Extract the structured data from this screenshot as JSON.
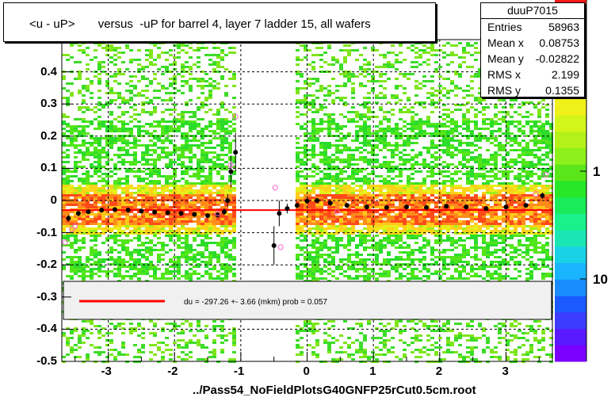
{
  "title": "<u - uP>       versus  -uP for barrel 4, layer 7 ladder 15, all wafers",
  "stats": {
    "name": "duuP7015",
    "rows": [
      {
        "label": "Entries",
        "value": "58963"
      },
      {
        "label": "Mean x",
        "value": "0.08753"
      },
      {
        "label": "Mean y",
        "value": "-0.02822"
      },
      {
        "label": "RMS x",
        "value": "2.199"
      },
      {
        "label": "RMS y",
        "value": "0.1355"
      }
    ]
  },
  "footer": "../Pass54_NoFieldPlotsG40GNFP25rCut0.5cm.root",
  "fit_legend": "du = -297.26 +-  3.66 (mkm) prob = 0.057",
  "colors": {
    "fit_line": "#ff0000",
    "profile_points": "#000000",
    "open_points": "#ff66cc",
    "legend_fill": "#f0f0f0"
  },
  "chart_data": {
    "type": "heatmap",
    "xlim": [
      -3.7,
      3.7
    ],
    "ylim": [
      -0.5,
      0.5
    ],
    "x_ticks": [
      -3,
      -2,
      -1,
      0,
      1,
      2,
      3
    ],
    "y_ticks": [
      -0.5,
      -0.4,
      -0.3,
      -0.2,
      -0.1,
      0,
      0.1,
      0.2,
      0.3,
      0.4
    ],
    "y_tick_labels": [
      "-0.5",
      "-0.4",
      "-0.3",
      "-0.2",
      "-0.1",
      "0",
      "0.1",
      "0.2",
      "0.3",
      "0.4"
    ],
    "x_tick_labels": [
      "-3",
      "-2",
      "-1",
      "0",
      "1",
      "2",
      "3"
    ],
    "z_scale": "log",
    "z_tick_labels": [
      "1",
      "10"
    ],
    "grid": true,
    "empty_x_band": [
      -1.05,
      -0.15
    ],
    "profile": [
      {
        "x": -3.6,
        "y": -0.055,
        "err": 0.01
      },
      {
        "x": -3.45,
        "y": -0.04,
        "err": 0.008
      },
      {
        "x": -3.3,
        "y": -0.035,
        "err": 0.006
      },
      {
        "x": -3.1,
        "y": -0.03,
        "err": 0.005
      },
      {
        "x": -2.9,
        "y": -0.028,
        "err": 0.005
      },
      {
        "x": -2.7,
        "y": -0.03,
        "err": 0.005
      },
      {
        "x": -2.5,
        "y": -0.033,
        "err": 0.005
      },
      {
        "x": -2.3,
        "y": -0.036,
        "err": 0.005
      },
      {
        "x": -2.1,
        "y": -0.038,
        "err": 0.005
      },
      {
        "x": -1.9,
        "y": -0.04,
        "err": 0.005
      },
      {
        "x": -1.7,
        "y": -0.043,
        "err": 0.006
      },
      {
        "x": -1.5,
        "y": -0.047,
        "err": 0.007
      },
      {
        "x": -1.35,
        "y": -0.045,
        "err": 0.008
      },
      {
        "x": -1.25,
        "y": -0.035,
        "err": 0.01
      },
      {
        "x": -1.2,
        "y": 0.0,
        "err": 0.02
      },
      {
        "x": -1.15,
        "y": 0.09,
        "err": 0.05
      },
      {
        "x": -1.08,
        "y": 0.15,
        "err": 0.06
      },
      {
        "x": -0.5,
        "y": -0.14,
        "err": 0.06
      },
      {
        "x": -0.42,
        "y": -0.04,
        "err": 0.04
      },
      {
        "x": -0.3,
        "y": -0.025,
        "err": 0.015
      },
      {
        "x": -0.15,
        "y": -0.015,
        "err": 0.008
      },
      {
        "x": 0.0,
        "y": -0.002,
        "err": 0.006
      },
      {
        "x": 0.15,
        "y": 0.0,
        "err": 0.005
      },
      {
        "x": 0.35,
        "y": -0.008,
        "err": 0.005
      },
      {
        "x": 0.6,
        "y": -0.015,
        "err": 0.005
      },
      {
        "x": 0.9,
        "y": -0.02,
        "err": 0.005
      },
      {
        "x": 1.2,
        "y": -0.022,
        "err": 0.005
      },
      {
        "x": 1.5,
        "y": -0.02,
        "err": 0.005
      },
      {
        "x": 1.8,
        "y": -0.022,
        "err": 0.005
      },
      {
        "x": 2.1,
        "y": -0.018,
        "err": 0.005
      },
      {
        "x": 2.4,
        "y": -0.02,
        "err": 0.005
      },
      {
        "x": 2.7,
        "y": -0.025,
        "err": 0.005
      },
      {
        "x": 3.0,
        "y": -0.02,
        "err": 0.006
      },
      {
        "x": 3.3,
        "y": -0.015,
        "err": 0.007
      },
      {
        "x": 3.55,
        "y": 0.015,
        "err": 0.01
      }
    ],
    "open_points": [
      {
        "x": -3.65,
        "y": -0.13
      },
      {
        "x": -3.55,
        "y": -0.09
      },
      {
        "x": -3.5,
        "y": -0.08
      },
      {
        "x": -1.35,
        "y": -0.04
      },
      {
        "x": -1.15,
        "y": 0.11
      },
      {
        "x": -1.08,
        "y": 0.26
      },
      {
        "x": -0.48,
        "y": 0.04
      },
      {
        "x": -0.4,
        "y": -0.145
      },
      {
        "x": 0.45,
        "y": -0.035
      },
      {
        "x": 3.45,
        "y": 0.02
      },
      {
        "x": 3.6,
        "y": 0.08
      }
    ],
    "fit": {
      "x_range": [
        -3.7,
        3.7
      ],
      "y": -0.03
    }
  }
}
